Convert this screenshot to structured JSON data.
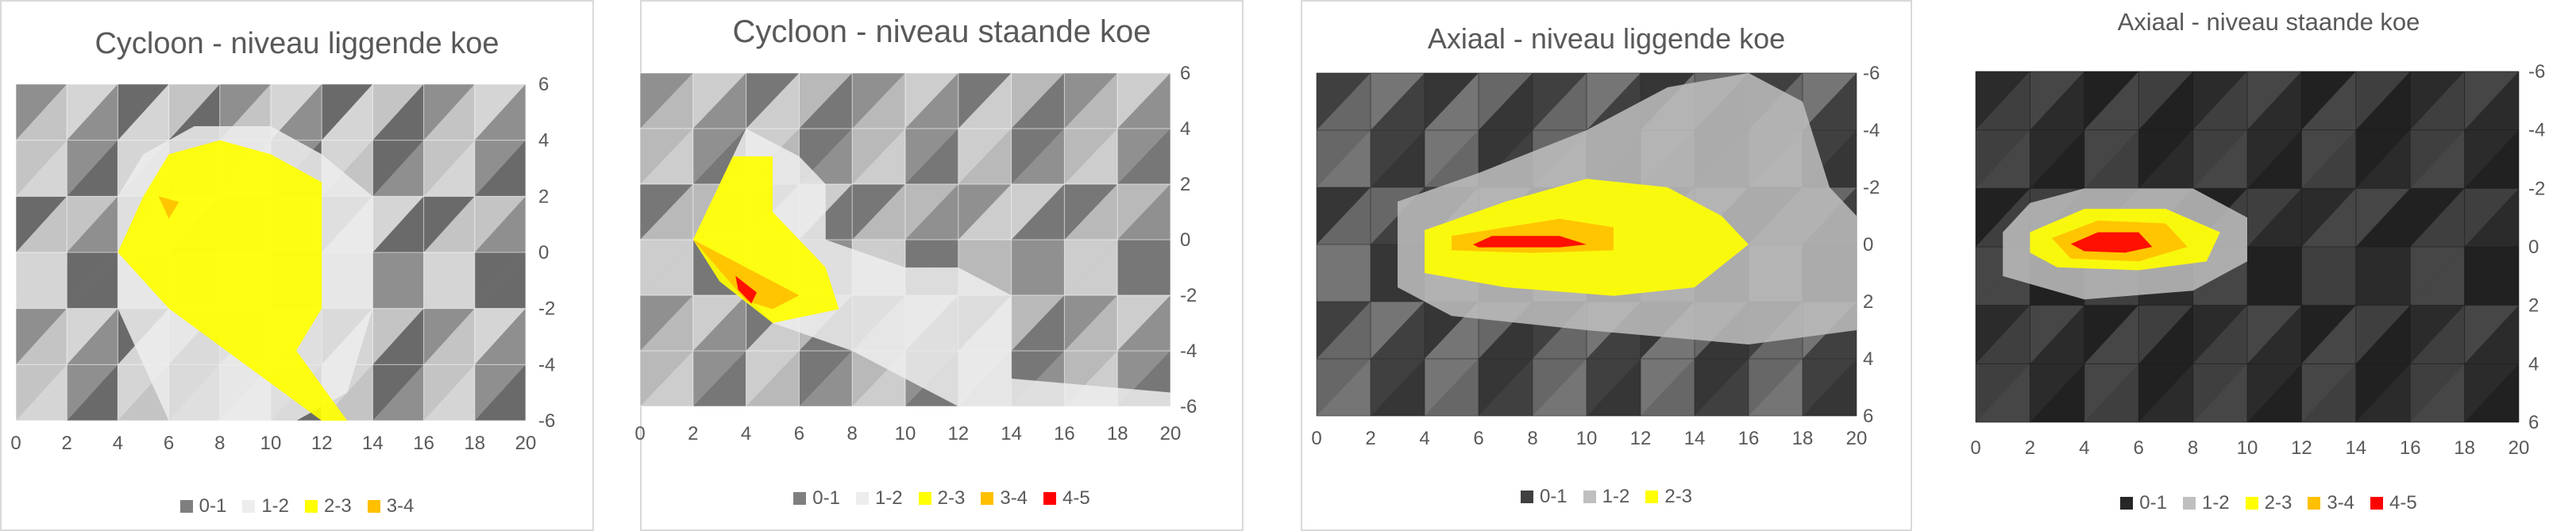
{
  "chart_data": [
    {
      "type": "area",
      "title": "Cycloon - niveau liggende koe",
      "x_ticks": [
        0,
        2,
        4,
        6,
        8,
        10,
        12,
        14,
        16,
        18,
        20
      ],
      "y_ticks": [
        6,
        4,
        2,
        0,
        -2,
        -4,
        -6
      ],
      "xlim": [
        0,
        20
      ],
      "ylim": [
        -6,
        6
      ],
      "y_axis_direction": "up",
      "legend_position": "bottom",
      "series": [
        {
          "name": "0-1",
          "color": "#7f7f7f"
        },
        {
          "name": "1-2",
          "color": "#ededed"
        },
        {
          "name": "2-3",
          "color": "#ffff00"
        },
        {
          "name": "3-4",
          "color": "#ffc000"
        }
      ],
      "regions": [
        {
          "series": "1-2",
          "polygon": [
            [
              4,
              2
            ],
            [
              5,
              3.5
            ],
            [
              7,
              4.5
            ],
            [
              10,
              4.5
            ],
            [
              12,
              3.5
            ],
            [
              14,
              2
            ],
            [
              14,
              -2
            ],
            [
              13,
              -5
            ],
            [
              11,
              -6
            ],
            [
              6,
              -6
            ],
            [
              4,
              -2
            ]
          ]
        },
        {
          "series": "2-3",
          "polygon": [
            [
              5,
              2
            ],
            [
              6,
              3.5
            ],
            [
              8,
              4
            ],
            [
              10,
              3.5
            ],
            [
              12,
              2.5
            ],
            [
              12,
              -2
            ],
            [
              11,
              -3.5
            ],
            [
              13,
              -6
            ],
            [
              12,
              -6
            ],
            [
              9,
              -4
            ],
            [
              6,
              -2
            ],
            [
              4,
              0
            ]
          ]
        },
        {
          "series": "3-4",
          "polygon": [
            [
              5.6,
              2
            ],
            [
              6.4,
              1.8
            ],
            [
              6,
              1.2
            ]
          ]
        }
      ]
    },
    {
      "type": "area",
      "title": "Cycloon - niveau staande koe",
      "x_ticks": [
        0,
        2,
        4,
        6,
        8,
        10,
        12,
        14,
        16,
        18,
        20
      ],
      "y_ticks": [
        6,
        4,
        2,
        0,
        -2,
        -4,
        -6
      ],
      "xlim": [
        0,
        20
      ],
      "ylim": [
        -6,
        6
      ],
      "y_axis_direction": "up",
      "legend_position": "bottom",
      "series": [
        {
          "name": "0-1",
          "color": "#7f7f7f"
        },
        {
          "name": "1-2",
          "color": "#ededed"
        },
        {
          "name": "2-3",
          "color": "#ffff00"
        },
        {
          "name": "3-4",
          "color": "#ffc000"
        },
        {
          "name": "4-5",
          "color": "#ff0000"
        }
      ],
      "regions": [
        {
          "series": "1-2",
          "polygon": [
            [
              2,
              0
            ],
            [
              4,
              4
            ],
            [
              6,
              3
            ],
            [
              7,
              2
            ],
            [
              7,
              0
            ],
            [
              10,
              -1
            ],
            [
              12,
              -1
            ],
            [
              14,
              -2
            ],
            [
              14,
              -5
            ],
            [
              20,
              -5.5
            ],
            [
              20,
              -6
            ],
            [
              12,
              -6
            ],
            [
              8,
              -4
            ],
            [
              5,
              -3
            ]
          ]
        },
        {
          "series": "2-3",
          "polygon": [
            [
              2,
              0
            ],
            [
              3.5,
              3
            ],
            [
              5,
              3
            ],
            [
              5,
              1
            ],
            [
              7,
              -1
            ],
            [
              7.5,
              -2.5
            ],
            [
              5,
              -3
            ],
            [
              3,
              -1.5
            ]
          ]
        },
        {
          "series": "3-4",
          "polygon": [
            [
              2,
              0
            ],
            [
              3,
              -0.5
            ],
            [
              5,
              -1.5
            ],
            [
              6,
              -2
            ],
            [
              5,
              -2.5
            ],
            [
              4,
              -2.2
            ]
          ]
        },
        {
          "series": "4-5",
          "polygon": [
            [
              3.6,
              -1.3
            ],
            [
              4.4,
              -1.9
            ],
            [
              4.2,
              -2.3
            ],
            [
              3.7,
              -1.8
            ]
          ]
        }
      ]
    },
    {
      "type": "area",
      "title": "Axiaal - niveau liggende koe",
      "x_ticks": [
        0,
        2,
        4,
        6,
        8,
        10,
        12,
        14,
        16,
        18,
        20
      ],
      "y_ticks": [
        -6,
        -4,
        -2,
        0,
        2,
        4,
        6
      ],
      "xlim": [
        0,
        20
      ],
      "ylim": [
        -6,
        6
      ],
      "y_axis_direction": "down",
      "legend_position": "bottom",
      "series": [
        {
          "name": "0-1",
          "color": "#404040"
        },
        {
          "name": "1-2",
          "color": "#bfbfbf"
        },
        {
          "name": "2-3",
          "color": "#ffff00"
        }
      ],
      "regions": [
        {
          "series": "1-2",
          "polygon": [
            [
              3,
              -1.5
            ],
            [
              6,
              -2.5
            ],
            [
              10,
              -4
            ],
            [
              13,
              -5.5
            ],
            [
              16,
              -6
            ],
            [
              18,
              -5
            ],
            [
              19,
              -2
            ],
            [
              20,
              -1
            ],
            [
              20,
              3
            ],
            [
              16,
              3.5
            ],
            [
              10,
              3
            ],
            [
              5,
              2.5
            ],
            [
              3,
              1.5
            ]
          ]
        },
        {
          "series": "2-3",
          "polygon": [
            [
              4,
              -0.5
            ],
            [
              7,
              -1.5
            ],
            [
              10,
              -2.3
            ],
            [
              13,
              -2
            ],
            [
              15,
              -1
            ],
            [
              16,
              0
            ],
            [
              14,
              1.5
            ],
            [
              11,
              1.8
            ],
            [
              7,
              1.5
            ],
            [
              4,
              1
            ]
          ]
        },
        {
          "series": "3-4",
          "polygon": [
            [
              5,
              -0.3
            ],
            [
              9,
              -0.9
            ],
            [
              11,
              -0.6
            ],
            [
              11,
              0.2
            ],
            [
              8,
              0.3
            ],
            [
              5,
              0.2
            ]
          ]
        },
        {
          "series": "4-5",
          "polygon": [
            [
              5.8,
              0
            ],
            [
              6.5,
              -0.3
            ],
            [
              9,
              -0.3
            ],
            [
              10,
              0
            ],
            [
              9,
              0.1
            ],
            [
              6,
              0.1
            ]
          ]
        }
      ]
    },
    {
      "type": "area",
      "title": "Axiaal - niveau staande koe",
      "x_ticks": [
        0,
        2,
        4,
        6,
        8,
        10,
        12,
        14,
        16,
        18,
        20
      ],
      "y_ticks": [
        -6,
        -4,
        -2,
        0,
        2,
        4,
        6
      ],
      "xlim": [
        0,
        20
      ],
      "ylim": [
        -6,
        6
      ],
      "y_axis_direction": "down",
      "legend_position": "bottom",
      "series": [
        {
          "name": "0-1",
          "color": "#262626"
        },
        {
          "name": "1-2",
          "color": "#bfbfbf"
        },
        {
          "name": "2-3",
          "color": "#ffff00"
        },
        {
          "name": "3-4",
          "color": "#ffc000"
        },
        {
          "name": "4-5",
          "color": "#ff0000"
        }
      ],
      "regions": [
        {
          "series": "1-2",
          "polygon": [
            [
              1,
              -0.5
            ],
            [
              2,
              -1.5
            ],
            [
              4,
              -2
            ],
            [
              8,
              -2
            ],
            [
              10,
              -1
            ],
            [
              10,
              0.5
            ],
            [
              8,
              1.5
            ],
            [
              4,
              1.8
            ],
            [
              1,
              1
            ]
          ]
        },
        {
          "series": "2-3",
          "polygon": [
            [
              2,
              -0.5
            ],
            [
              4,
              -1.3
            ],
            [
              7,
              -1.3
            ],
            [
              9,
              -0.5
            ],
            [
              8.5,
              0.5
            ],
            [
              6,
              0.8
            ],
            [
              3,
              0.7
            ],
            [
              2,
              0.2
            ]
          ]
        },
        {
          "series": "3-4",
          "polygon": [
            [
              2.8,
              -0.3
            ],
            [
              4.5,
              -0.9
            ],
            [
              7,
              -0.8
            ],
            [
              7.8,
              0
            ],
            [
              6,
              0.5
            ],
            [
              3.5,
              0.4
            ]
          ]
        },
        {
          "series": "4-5",
          "polygon": [
            [
              3.5,
              -0.1
            ],
            [
              4.5,
              -0.5
            ],
            [
              6,
              -0.5
            ],
            [
              6.5,
              0
            ],
            [
              5.5,
              0.2
            ],
            [
              4,
              0.15
            ]
          ]
        }
      ]
    }
  ]
}
